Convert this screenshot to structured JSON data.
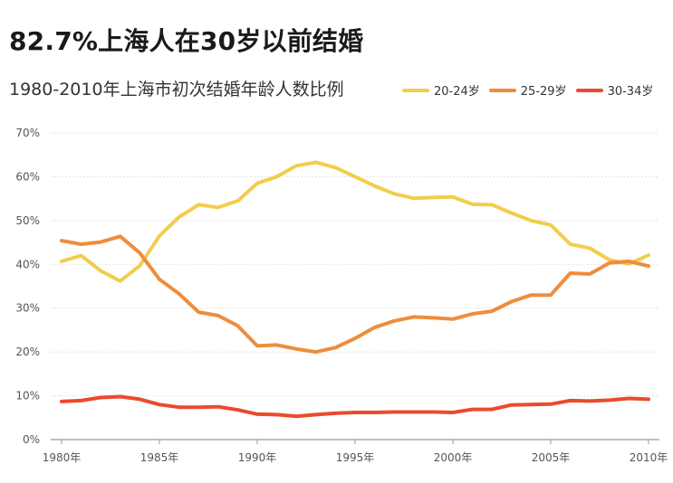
{
  "header": {
    "title": "82.7%上海人在30岁以前结婚",
    "subtitle": "1980-2010年上海市初次结婚年龄人数比例"
  },
  "chart_data": {
    "type": "line",
    "title": "82.7%上海人在30岁以前结婚",
    "subtitle": "1980-2010年上海市初次结婚年龄人数比例",
    "xlabel": "",
    "ylabel": "",
    "x": [
      1980,
      1981,
      1982,
      1983,
      1984,
      1985,
      1986,
      1987,
      1988,
      1989,
      1990,
      1991,
      1992,
      1993,
      1994,
      1995,
      1996,
      1997,
      1998,
      1999,
      2000,
      2001,
      2002,
      2003,
      2004,
      2005,
      2006,
      2007,
      2008,
      2009,
      2010
    ],
    "xlim": [
      1980,
      2010
    ],
    "ylim": [
      0,
      70
    ],
    "y_ticks": [
      0,
      10,
      20,
      30,
      40,
      50,
      60,
      70
    ],
    "y_tick_labels": [
      "0%",
      "10%",
      "20%",
      "30%",
      "40%",
      "50%",
      "60%",
      "70%"
    ],
    "x_ticks": [
      1980,
      1985,
      1990,
      1995,
      2000,
      2005,
      2010
    ],
    "x_tick_labels": [
      "1980年",
      "1985年",
      "1990年",
      "1995年",
      "2000年",
      "2005年",
      "2010年"
    ],
    "grid": true,
    "legend_position": "top-right",
    "series": [
      {
        "name": "20-24岁",
        "color": "#f2cd4d",
        "values": [
          40.7,
          42.0,
          38.5,
          36.2,
          39.7,
          46.5,
          50.8,
          53.6,
          53.0,
          54.5,
          58.5,
          60.0,
          62.5,
          63.3,
          62.1,
          60.0,
          57.9,
          56.1,
          55.1,
          55.3,
          55.4,
          53.7,
          53.6,
          51.7,
          50.0,
          49.0,
          44.6,
          43.7,
          41.0,
          40.1,
          42.1
        ]
      },
      {
        "name": "25-29岁",
        "color": "#ee8d3c",
        "values": [
          45.4,
          44.6,
          45.1,
          46.4,
          42.6,
          36.6,
          33.3,
          29.1,
          28.3,
          26.0,
          21.4,
          21.6,
          20.7,
          20.0,
          21.0,
          23.1,
          25.6,
          27.1,
          28.0,
          27.8,
          27.5,
          28.7,
          29.3,
          31.5,
          33.0,
          33.0,
          38.0,
          37.8,
          40.3,
          40.7,
          39.6
        ]
      },
      {
        "name": "30-34岁",
        "color": "#ea4b2c",
        "values": [
          8.7,
          8.9,
          9.6,
          9.8,
          9.2,
          8.0,
          7.4,
          7.4,
          7.5,
          6.8,
          5.8,
          5.7,
          5.3,
          5.7,
          6.0,
          6.2,
          6.2,
          6.3,
          6.3,
          6.3,
          6.2,
          6.9,
          6.9,
          7.9,
          8.0,
          8.1,
          8.9,
          8.8,
          9.0,
          9.4,
          9.2
        ]
      }
    ]
  }
}
